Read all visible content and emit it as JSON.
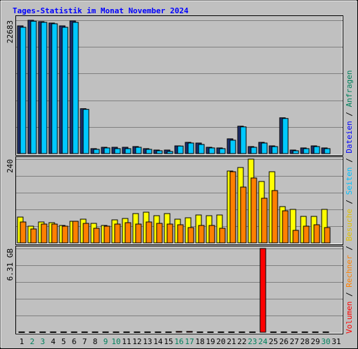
{
  "chart_data": {
    "type": "bar",
    "title": "Tages-Statistik im Monat November 2024",
    "categories": [
      "1",
      "2",
      "3",
      "4",
      "5",
      "6",
      "7",
      "8",
      "9",
      "10",
      "11",
      "12",
      "13",
      "14",
      "15",
      "16",
      "17",
      "18",
      "19",
      "20",
      "21",
      "22",
      "23",
      "24",
      "25",
      "26",
      "27",
      "28",
      "29",
      "30",
      "31"
    ],
    "category_colors": [
      "#000000",
      "#00805c",
      "#00805c",
      "#000000",
      "#000000",
      "#000000",
      "#000000",
      "#000000",
      "#00805c",
      "#00805c",
      "#000000",
      "#000000",
      "#000000",
      "#000000",
      "#000000",
      "#00805c",
      "#00805c",
      "#000000",
      "#000000",
      "#000000",
      "#000000",
      "#000000",
      "#00805c",
      "#00805c",
      "#000000",
      "#000000",
      "#000000",
      "#000000",
      "#000000",
      "#00805c",
      "#000000"
    ],
    "panels": [
      {
        "ylim": [
          0,
          22683
        ],
        "yticks": [
          22683
        ],
        "series": [
          {
            "name": "Anfragen",
            "color": "#1c2f6e",
            "values": [
              21730,
              22683,
              22450,
              22210,
              21730,
              22570,
              7640,
              840,
              1070,
              1070,
              1070,
              1190,
              840,
              600,
              600,
              1310,
              1910,
              1790,
              1070,
              960,
              2510,
              4660,
              1190,
              1910,
              1310,
              6090,
              600,
              960,
              1310,
              960,
              null
            ]
          },
          {
            "name": "Dateien",
            "color": "#00c8ff",
            "values": [
              21490,
              22520,
              22330,
              22090,
              21490,
              22330,
              7520,
              720,
              960,
              840,
              840,
              1070,
              720,
              480,
              360,
              1280,
              1790,
              1550,
              960,
              840,
              2270,
              4540,
              1070,
              1790,
              1190,
              5970,
              480,
              840,
              1190,
              840,
              null
            ]
          }
        ]
      },
      {
        "ylim": [
          0,
          240
        ],
        "yticks": [
          240
        ],
        "series": [
          {
            "name": "Besuche",
            "color": "#ffff00",
            "values": [
              74,
              48,
              60,
              58,
              50,
              62,
              68,
              56,
              50,
              66,
              70,
              84,
              88,
              78,
              84,
              68,
              72,
              80,
              78,
              80,
              206,
              216,
              240,
              176,
              204,
              104,
              96,
              76,
              76,
              96,
              null
            ]
          },
          {
            "name": "Rechner",
            "color": "#ff8000",
            "values": [
              60,
              40,
              54,
              54,
              48,
              62,
              56,
              42,
              48,
              54,
              58,
              54,
              60,
              56,
              54,
              52,
              44,
              50,
              50,
              42,
              204,
              160,
              186,
              128,
              150,
              92,
              36,
              48,
              52,
              44,
              null
            ]
          }
        ]
      },
      {
        "ylim": [
          0,
          6.31
        ],
        "yticks": [
          {
            "value": 6.31,
            "label": "6.31 GB"
          }
        ],
        "series": [
          {
            "name": "Volumen",
            "color": "#ff0000",
            "values": [
              0.03,
              0.03,
              0.03,
              0.03,
              0.03,
              0.03,
              0.03,
              0.03,
              0.03,
              0.03,
              0.03,
              0.03,
              0.03,
              0.03,
              0.03,
              0.06,
              0.06,
              0.03,
              0.03,
              0.03,
              0.03,
              0.03,
              0.03,
              6.31,
              0.03,
              0.03,
              0.03,
              0.03,
              0.03,
              0.03,
              null
            ]
          }
        ]
      }
    ],
    "legend": [
      {
        "name": "Volumen",
        "color": "#ff0000"
      },
      {
        "name": "Rechner",
        "color": "#ff8000"
      },
      {
        "name": "Besuche",
        "color": "#e0c000"
      },
      {
        "name": "Seiten",
        "color": "#00c0ff"
      },
      {
        "name": "Dateien",
        "color": "#0000ff"
      },
      {
        "name": "Anfragen",
        "color": "#00805c"
      }
    ],
    "legend_separator": " / "
  }
}
